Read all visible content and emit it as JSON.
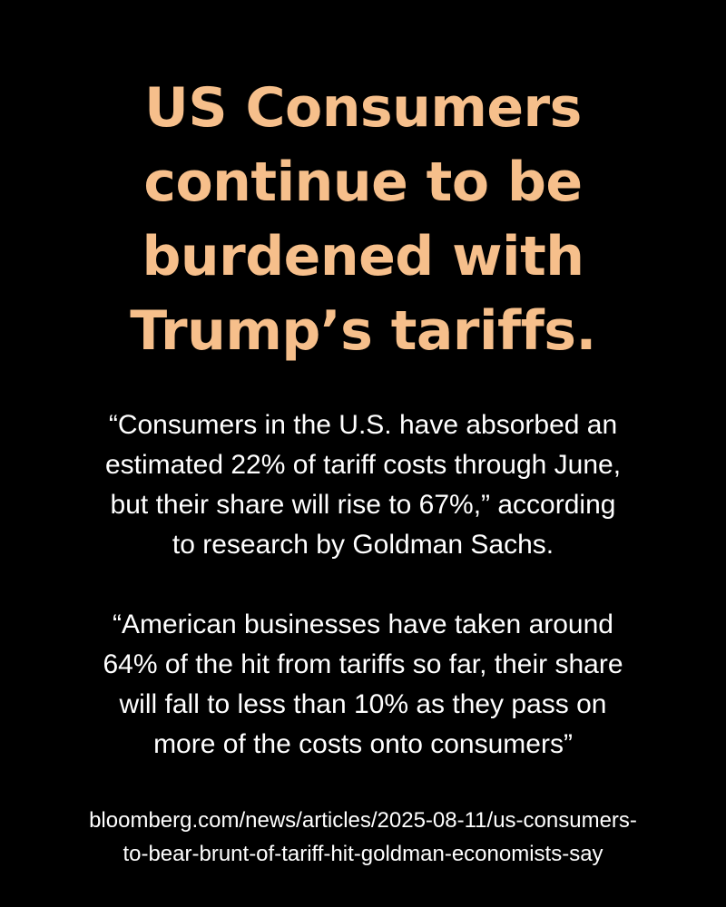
{
  "colors": {
    "background": "#000000",
    "headline": "#f6bf8b",
    "body_text": "#ffffff"
  },
  "headline": {
    "lines": [
      "US Consumers",
      "continue to be",
      "burdened with",
      "Trump’s tariffs."
    ]
  },
  "quotes": [
    {
      "lines": [
        "“Consumers in the U.S. have absorbed an",
        "estimated 22% of tariff costs through June,",
        "but their share will rise to 67%,” according",
        "to research by Goldman Sachs."
      ]
    },
    {
      "lines": [
        "“American businesses have taken around",
        "64% of the hit from tariffs so far, their share",
        "will fall to less than 10% as they pass on",
        "more of the costs onto consumers”"
      ]
    }
  ],
  "source": {
    "lines": [
      "bloomberg.com/news/articles/2025-08-11/us-consumers-",
      "to-bear-brunt-of-tariff-hit-goldman-economists-say"
    ]
  }
}
